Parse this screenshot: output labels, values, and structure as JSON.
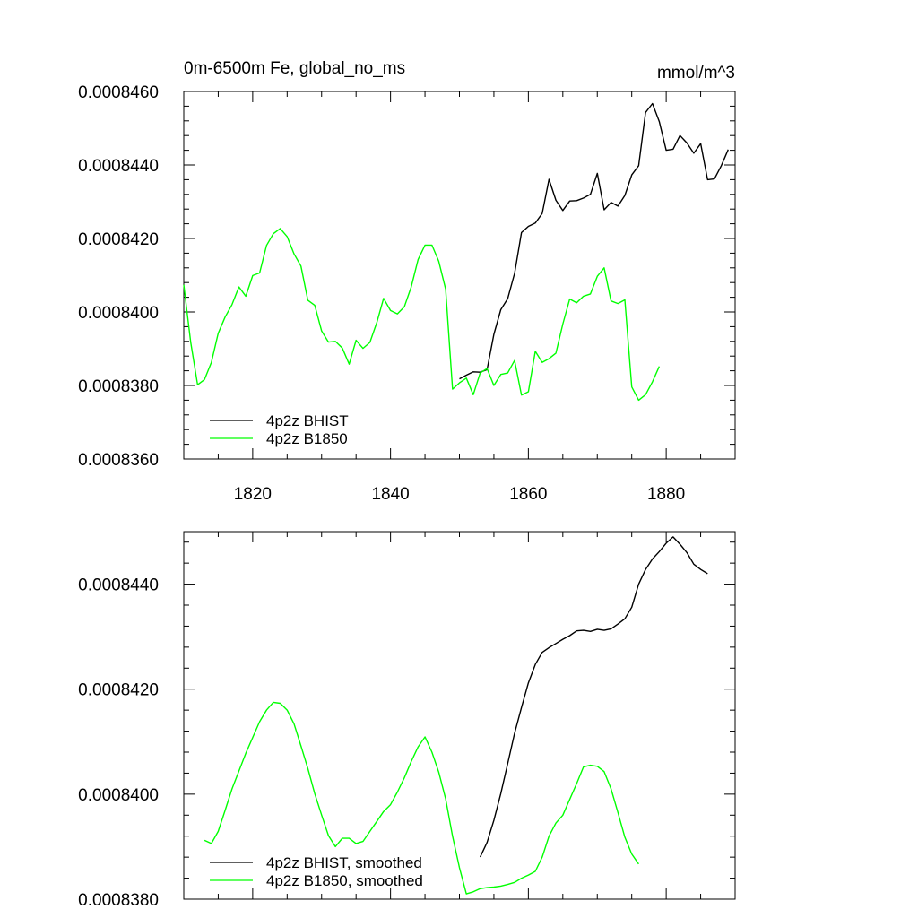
{
  "chart_data": [
    {
      "type": "line",
      "title_left": "0m-6500m Fe, global_no_ms",
      "title_right": "mmol/m^3",
      "xlabel": "",
      "ylabel": "",
      "xlim": [
        1810,
        1890
      ],
      "ylim": [
        0.000836,
        0.000846
      ],
      "x_ticks": [
        1820,
        1840,
        1860,
        1880
      ],
      "x_tick_labels": [
        "1820",
        "1840",
        "1860",
        "1880"
      ],
      "y_ticks": [
        0.000836,
        0.000838,
        0.00084,
        0.000842,
        0.000844,
        0.000846
      ],
      "y_tick_labels": [
        "0.0008360",
        "0.0008380",
        "0.0008400",
        "0.0008420",
        "0.0008440",
        "0.0008460"
      ],
      "legend_position": "bottom-left",
      "series": [
        {
          "name": "4p2z BHIST",
          "color": "#000000",
          "x": [
            1850,
            1851,
            1852,
            1853,
            1854,
            1855,
            1856,
            1857,
            1858,
            1859,
            1860,
            1861,
            1862,
            1863,
            1864,
            1865,
            1866,
            1867,
            1868,
            1869,
            1870,
            1871,
            1872,
            1873,
            1874,
            1875,
            1876,
            1877,
            1878,
            1879,
            1880,
            1881,
            1882,
            1883,
            1884,
            1885,
            1886,
            1887,
            1888,
            1889
          ],
          "values": [
            0.00083818,
            0.00083828,
            0.00083837,
            0.00083836,
            0.00083843,
            0.00083939,
            0.00084006,
            0.00084036,
            0.00084105,
            0.00084216,
            0.00084233,
            0.00084242,
            0.00084268,
            0.00084361,
            0.00084304,
            0.00084276,
            0.00084302,
            0.00084303,
            0.0008431,
            0.0008432,
            0.00084377,
            0.00084278,
            0.00084298,
            0.00084288,
            0.00084317,
            0.00084373,
            0.00084398,
            0.00084543,
            0.00084567,
            0.00084518,
            0.0008444,
            0.00084443,
            0.0008448,
            0.0008446,
            0.00084432,
            0.00084458,
            0.0008436,
            0.00084362,
            0.00084398,
            0.00084442
          ]
        },
        {
          "name": "4p2z B1850",
          "color": "#00ff00",
          "x": [
            1810,
            1811,
            1812,
            1813,
            1814,
            1815,
            1816,
            1817,
            1818,
            1819,
            1820,
            1821,
            1822,
            1823,
            1824,
            1825,
            1826,
            1827,
            1828,
            1829,
            1830,
            1831,
            1832,
            1833,
            1834,
            1835,
            1836,
            1837,
            1838,
            1839,
            1840,
            1841,
            1842,
            1843,
            1844,
            1845,
            1846,
            1847,
            1848,
            1849,
            1850,
            1851,
            1852,
            1853,
            1854,
            1855,
            1856,
            1857,
            1858,
            1859,
            1860,
            1861,
            1862,
            1863,
            1864,
            1865,
            1866,
            1867,
            1868,
            1869,
            1870,
            1871,
            1872,
            1873,
            1874,
            1875,
            1876,
            1877,
            1878,
            1879
          ],
          "values": [
            0.00084074,
            0.00083918,
            0.00083802,
            0.00083816,
            0.00083863,
            0.00083942,
            0.00083986,
            0.0008402,
            0.00084068,
            0.00084043,
            0.00084099,
            0.00084106,
            0.00084181,
            0.00084213,
            0.00084227,
            0.00084205,
            0.00084158,
            0.00084125,
            0.00084032,
            0.00084018,
            0.00083948,
            0.00083918,
            0.0008392,
            0.00083902,
            0.00083858,
            0.00083923,
            0.00083901,
            0.00083917,
            0.00083971,
            0.00084037,
            0.00084004,
            0.00083995,
            0.00084014,
            0.00084068,
            0.00084143,
            0.00084182,
            0.00084182,
            0.00084138,
            0.00084062,
            0.0008379,
            0.00083807,
            0.0008382,
            0.00083775,
            0.00083834,
            0.00083846,
            0.000838,
            0.0008383,
            0.00083834,
            0.00083868,
            0.00083774,
            0.00083783,
            0.00083893,
            0.00083863,
            0.00083873,
            0.00083888,
            0.00083967,
            0.00084035,
            0.00084025,
            0.00084043,
            0.00084049,
            0.00084097,
            0.0008412,
            0.0008403,
            0.00084023,
            0.00084033,
            0.00083796,
            0.0008376,
            0.00083775,
            0.0008381,
            0.00083852
          ]
        }
      ]
    },
    {
      "type": "line",
      "title": "",
      "xlabel": "",
      "ylabel": "",
      "xlim": [
        1810,
        1890
      ],
      "ylim": [
        0.000838,
        0.000845
      ],
      "x_ticks": [
        1820,
        1840,
        1860,
        1880
      ],
      "y_ticks": [
        0.000838,
        0.00084,
        0.000842,
        0.000844
      ],
      "y_tick_labels": [
        "0.0008380",
        "0.0008400",
        "0.0008420",
        "0.0008440"
      ],
      "legend_position": "bottom-left",
      "series": [
        {
          "name": "4p2z BHIST, smoothed",
          "color": "#000000",
          "x": [
            1853,
            1854,
            1855,
            1856,
            1857,
            1858,
            1859,
            1860,
            1861,
            1862,
            1863,
            1864,
            1865,
            1866,
            1867,
            1868,
            1869,
            1870,
            1871,
            1872,
            1873,
            1874,
            1875,
            1876,
            1877,
            1878,
            1879,
            1880,
            1881,
            1882,
            1883,
            1884,
            1885,
            1886
          ],
          "values": [
            0.0008388,
            0.00083908,
            0.0008395,
            0.00084001,
            0.00084058,
            0.00084116,
            0.00084165,
            0.00084212,
            0.00084247,
            0.0008427,
            0.00084279,
            0.00084287,
            0.00084295,
            0.00084302,
            0.00084311,
            0.00084312,
            0.0008431,
            0.00084314,
            0.00084312,
            0.00084315,
            0.00084324,
            0.00084334,
            0.00084356,
            0.000844,
            0.00084428,
            0.00084448,
            0.00084462,
            0.00084478,
            0.0008449,
            0.00084476,
            0.0008446,
            0.00084438,
            0.00084428,
            0.0008442
          ]
        },
        {
          "name": "4p2z B1850, smoothed",
          "color": "#00ff00",
          "x": [
            1813,
            1814,
            1815,
            1816,
            1817,
            1818,
            1819,
            1820,
            1821,
            1822,
            1823,
            1824,
            1825,
            1826,
            1827,
            1828,
            1829,
            1830,
            1831,
            1832,
            1833,
            1834,
            1835,
            1836,
            1837,
            1838,
            1839,
            1840,
            1841,
            1842,
            1843,
            1844,
            1845,
            1846,
            1847,
            1848,
            1849,
            1850,
            1851,
            1852,
            1853,
            1854,
            1855,
            1856,
            1857,
            1858,
            1859,
            1860,
            1861,
            1862,
            1863,
            1864,
            1865,
            1866,
            1867,
            1868,
            1869,
            1870,
            1871,
            1872,
            1873,
            1874,
            1875,
            1876
          ],
          "values": [
            0.00083912,
            0.00083906,
            0.00083929,
            0.00083969,
            0.0008401,
            0.00084044,
            0.00084078,
            0.00084108,
            0.00084138,
            0.0008416,
            0.00084175,
            0.00084173,
            0.0008416,
            0.00084134,
            0.00084092,
            0.00084049,
            0.00084001,
            0.0008396,
            0.00083921,
            0.000839,
            0.00083916,
            0.00083916,
            0.00083906,
            0.0008391,
            0.00083929,
            0.00083948,
            0.00083967,
            0.0008398,
            0.00084004,
            0.00084031,
            0.00084062,
            0.0008409,
            0.00084109,
            0.0008408,
            0.00084042,
            0.00083991,
            0.0008392,
            0.0008386,
            0.0008381,
            0.00083814,
            0.0008382,
            0.00083822,
            0.00083823,
            0.00083825,
            0.00083828,
            0.00083832,
            0.0008384,
            0.00083846,
            0.00083853,
            0.0008388,
            0.0008392,
            0.00083945,
            0.0008396,
            0.0008399,
            0.0008402,
            0.00084052,
            0.00084055,
            0.00084053,
            0.00084043,
            0.0008401,
            0.00083965,
            0.00083918,
            0.00083886,
            0.00083867
          ]
        }
      ]
    }
  ]
}
